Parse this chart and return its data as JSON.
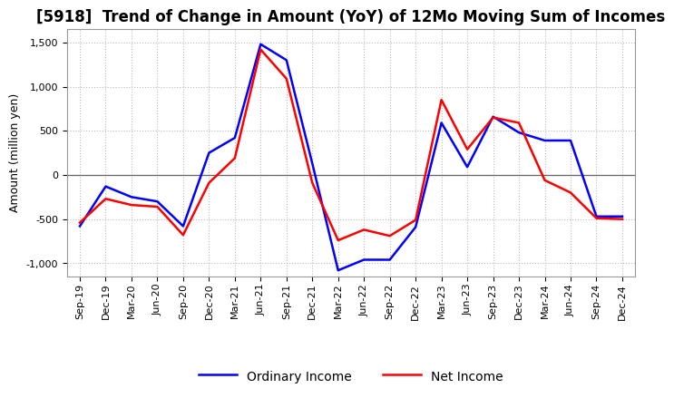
{
  "title": "[5918]  Trend of Change in Amount (YoY) of 12Mo Moving Sum of Incomes",
  "ylabel": "Amount (million yen)",
  "x_labels": [
    "Sep-19",
    "Dec-19",
    "Mar-20",
    "Jun-20",
    "Sep-20",
    "Dec-20",
    "Mar-21",
    "Jun-21",
    "Sep-21",
    "Dec-21",
    "Mar-22",
    "Jun-22",
    "Sep-22",
    "Dec-22",
    "Mar-23",
    "Jun-23",
    "Sep-23",
    "Dec-23",
    "Mar-24",
    "Jun-24",
    "Sep-24",
    "Dec-24"
  ],
  "ordinary_income": [
    -580,
    -130,
    -250,
    -300,
    -580,
    250,
    420,
    1480,
    1300,
    130,
    -1080,
    -960,
    -960,
    -590,
    590,
    90,
    660,
    480,
    390,
    390,
    -470,
    -470
  ],
  "net_income": [
    -540,
    -270,
    -340,
    -360,
    -680,
    -90,
    190,
    1420,
    1090,
    -90,
    -740,
    -620,
    -690,
    -510,
    850,
    290,
    650,
    590,
    -60,
    -200,
    -490,
    -500
  ],
  "ordinary_income_color": "#0000FF",
  "net_income_color": "#FF0000",
  "ylim": [
    -1150,
    1650
  ],
  "yticks": [
    -1000,
    -500,
    0,
    500,
    1000,
    1500
  ],
  "background_color": "#FFFFFF",
  "grid_color": "#BBBBBB",
  "title_fontsize": 12,
  "label_fontsize": 9,
  "tick_fontsize": 8,
  "legend_labels": [
    "Ordinary Income",
    "Net Income"
  ],
  "line_width": 1.8
}
